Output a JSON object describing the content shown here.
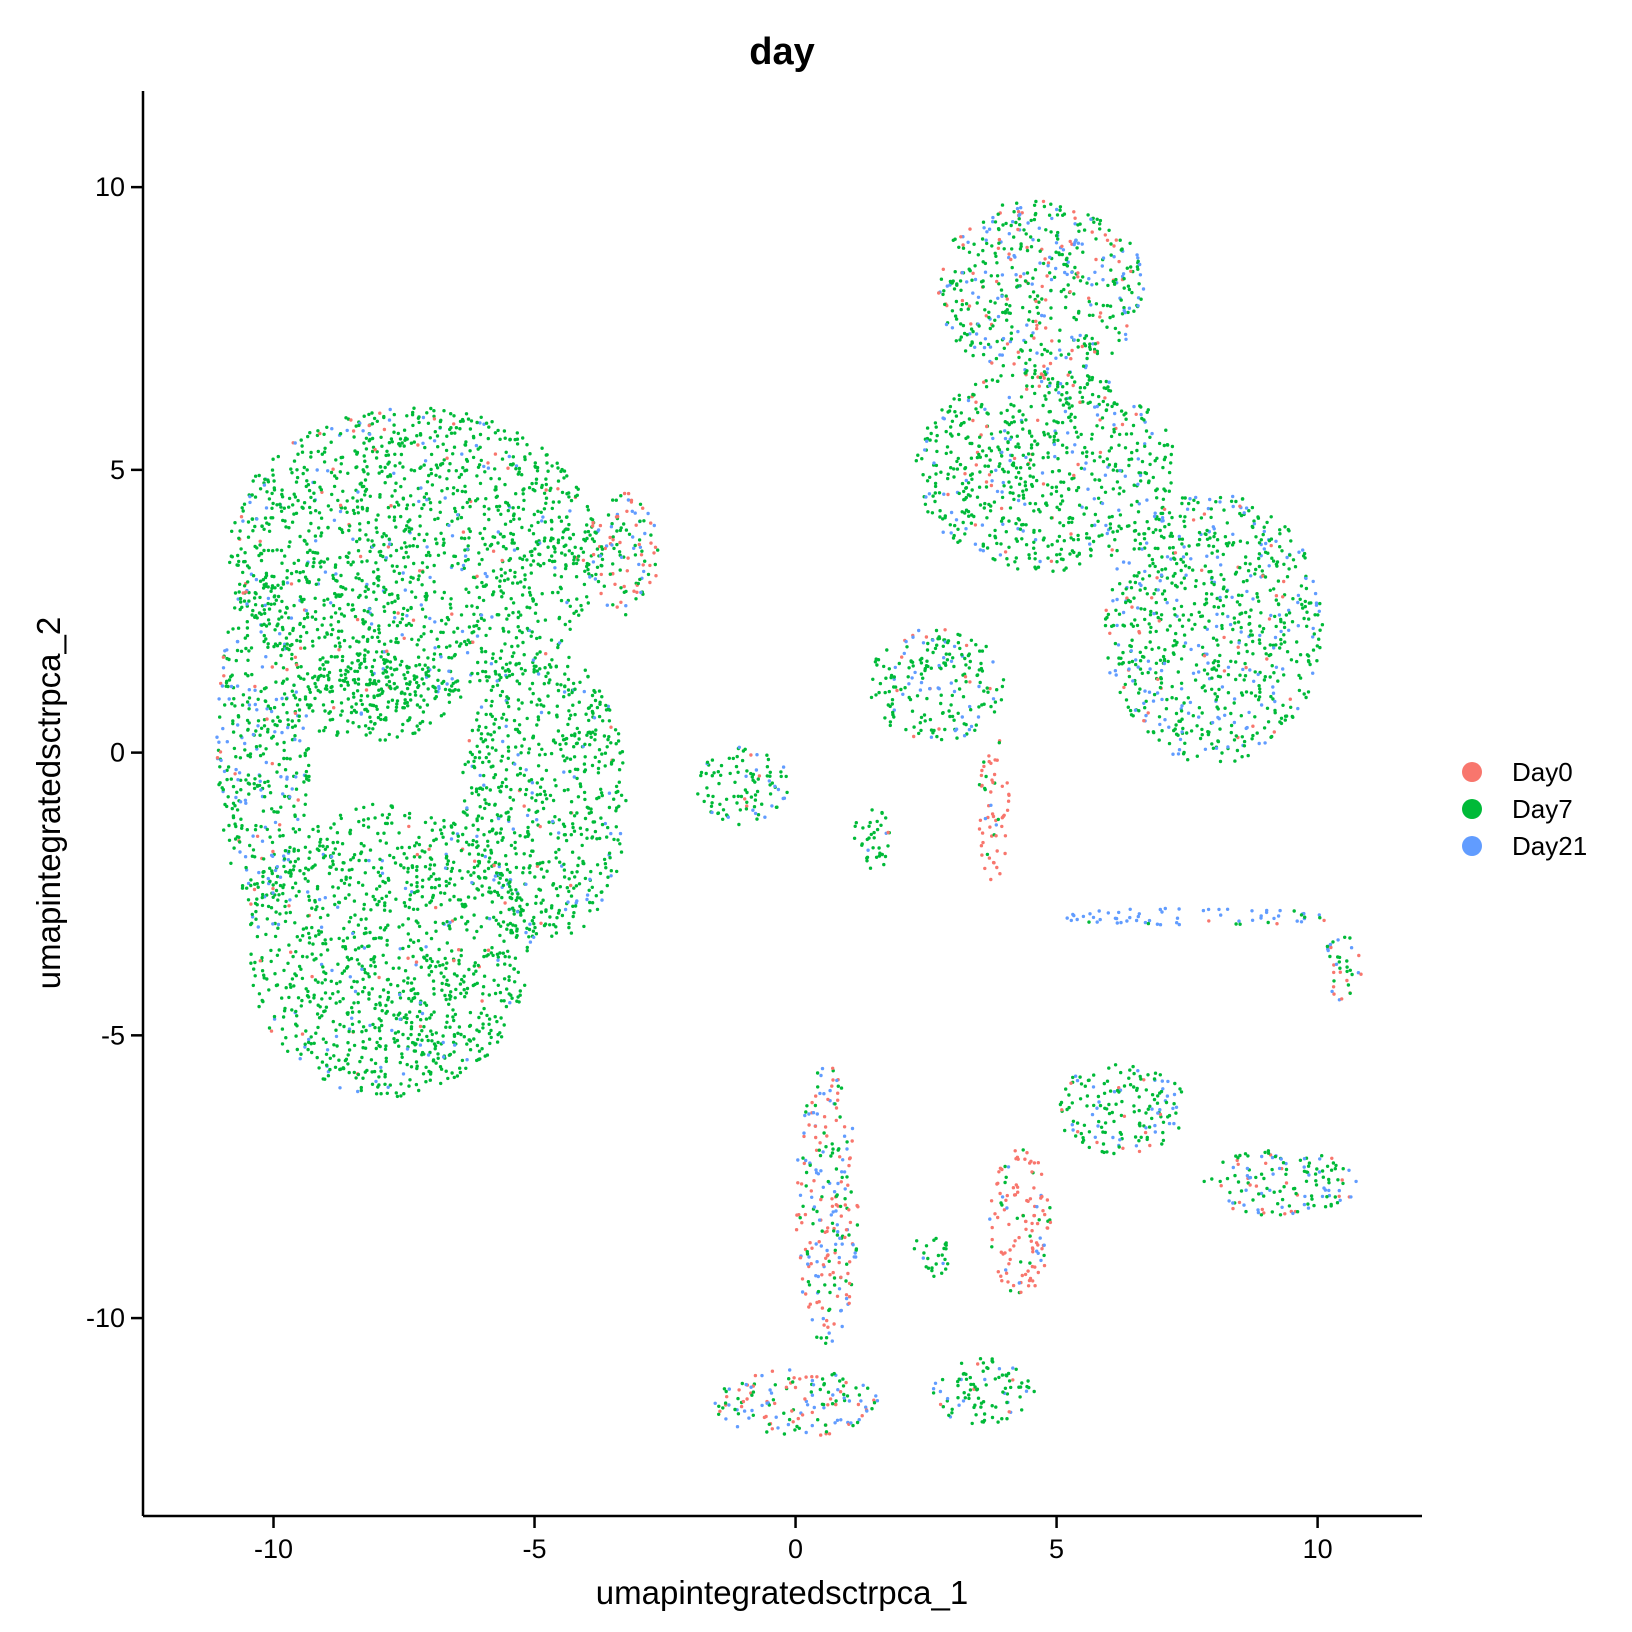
{
  "chart_data": {
    "type": "scatter",
    "title": "day",
    "xlabel": "umapintegratedsctrpca_1",
    "ylabel": "umapintegratedsctrpca_2",
    "xlim": [
      -12.5,
      12
    ],
    "ylim": [
      -13.5,
      11.7
    ],
    "xticks": [
      -10,
      -5,
      0,
      5,
      10
    ],
    "yticks": [
      -10,
      -5,
      0,
      5,
      10
    ],
    "xtick_labels": [
      "-10",
      "-5",
      "0",
      "5",
      "10"
    ],
    "ytick_labels": [
      "-10",
      "-5",
      "0",
      "5",
      "10"
    ],
    "grid": false,
    "legend_position": "right",
    "series": [
      {
        "name": "Day0",
        "color": "#F8766D"
      },
      {
        "name": "Day7",
        "color": "#00BA38"
      },
      {
        "name": "Day21",
        "color": "#619CFF"
      }
    ],
    "clusters": [
      {
        "cx": -7.3,
        "cy": 3.5,
        "rx": 3.6,
        "ry": 2.6,
        "weights": [
          0.04,
          0.88,
          0.08
        ]
      },
      {
        "cx": -7.8,
        "cy": -3.5,
        "rx": 2.7,
        "ry": 2.6,
        "weights": [
          0.03,
          0.9,
          0.07
        ]
      },
      {
        "cx": -10.2,
        "cy": 0.2,
        "rx": 0.9,
        "ry": 3.0,
        "weights": [
          0.06,
          0.72,
          0.22
        ]
      },
      {
        "cx": -8.2,
        "cy": 1.0,
        "rx": 1.6,
        "ry": 0.8,
        "weights": [
          0.01,
          0.98,
          0.01
        ]
      },
      {
        "cx": -4.8,
        "cy": -0.8,
        "rx": 1.6,
        "ry": 2.6,
        "weights": [
          0.02,
          0.9,
          0.08
        ]
      },
      {
        "cx": -3.3,
        "cy": 3.5,
        "rx": 0.7,
        "ry": 1.1,
        "weights": [
          0.35,
          0.5,
          0.15
        ]
      },
      {
        "cx": -1.0,
        "cy": -0.6,
        "rx": 0.9,
        "ry": 0.7,
        "weights": [
          0.04,
          0.84,
          0.12
        ]
      },
      {
        "cx": 4.7,
        "cy": 8.2,
        "rx": 2.0,
        "ry": 1.6,
        "weights": [
          0.14,
          0.6,
          0.26
        ]
      },
      {
        "cx": 4.8,
        "cy": 5.0,
        "rx": 2.5,
        "ry": 1.8,
        "weights": [
          0.05,
          0.8,
          0.15
        ]
      },
      {
        "cx": 8.0,
        "cy": 2.2,
        "rx": 2.1,
        "ry": 2.4,
        "weights": [
          0.04,
          0.74,
          0.22
        ]
      },
      {
        "cx": 2.7,
        "cy": 1.2,
        "rx": 1.3,
        "ry": 1.0,
        "weights": [
          0.05,
          0.78,
          0.17
        ]
      },
      {
        "cx": 3.8,
        "cy": -1.0,
        "rx": 0.3,
        "ry": 1.3,
        "weights": [
          0.7,
          0.25,
          0.05
        ]
      },
      {
        "cx": 1.5,
        "cy": -1.5,
        "rx": 0.4,
        "ry": 0.6,
        "weights": [
          0.05,
          0.9,
          0.05
        ]
      },
      {
        "cx": 7.7,
        "cy": -2.9,
        "rx": 2.8,
        "ry": 0.15,
        "weights": [
          0.05,
          0.1,
          0.85
        ]
      },
      {
        "cx": 10.5,
        "cy": -3.8,
        "rx": 0.4,
        "ry": 0.6,
        "weights": [
          0.3,
          0.4,
          0.3
        ]
      },
      {
        "cx": 0.6,
        "cy": -8.0,
        "rx": 0.6,
        "ry": 2.5,
        "weights": [
          0.4,
          0.3,
          0.3
        ]
      },
      {
        "cx": 0.0,
        "cy": -11.5,
        "rx": 1.6,
        "ry": 0.6,
        "weights": [
          0.36,
          0.34,
          0.3
        ]
      },
      {
        "cx": 3.6,
        "cy": -11.3,
        "rx": 1.0,
        "ry": 0.6,
        "weights": [
          0.05,
          0.8,
          0.15
        ]
      },
      {
        "cx": 2.6,
        "cy": -8.9,
        "rx": 0.4,
        "ry": 0.4,
        "weights": [
          0.05,
          0.9,
          0.05
        ]
      },
      {
        "cx": 4.3,
        "cy": -8.3,
        "rx": 0.6,
        "ry": 1.3,
        "weights": [
          0.75,
          0.15,
          0.1
        ]
      },
      {
        "cx": 6.2,
        "cy": -6.3,
        "rx": 1.3,
        "ry": 0.8,
        "weights": [
          0.05,
          0.72,
          0.23
        ]
      },
      {
        "cx": 9.3,
        "cy": -7.6,
        "rx": 1.5,
        "ry": 0.6,
        "weights": [
          0.12,
          0.55,
          0.33
        ]
      }
    ]
  }
}
